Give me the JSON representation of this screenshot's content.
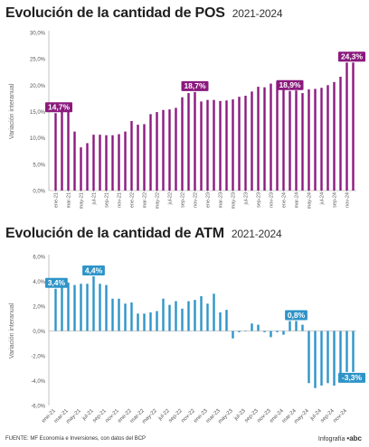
{
  "chart_data": [
    {
      "type": "bar",
      "title": "Evolución de la cantidad de POS",
      "subtitle": "2021-2024",
      "ylabel": "Variación interanual",
      "ylim": [
        0,
        30
      ],
      "yticks": [
        "0,0%",
        "5,0%",
        "10,0%",
        "15,0%",
        "20,0%",
        "25,0%",
        "30,0%"
      ],
      "xticks": [
        "ene-21",
        "mar-21",
        "may-21",
        "jul-21",
        "sep-21",
        "nov-21",
        "ene-22",
        "mar-22",
        "may-22",
        "jul-22",
        "sep-22",
        "nov-22",
        "ene-23",
        "mar-23",
        "may-23",
        "jul-23",
        "sep-23",
        "nov-23",
        "ene-24",
        "mar-24",
        "may-24",
        "jul-24",
        "sep-24",
        "nov-24"
      ],
      "categories": [
        "ene-21",
        "feb-21",
        "mar-21",
        "abr-21",
        "may-21",
        "jun-21",
        "jul-21",
        "ago-21",
        "sep-21",
        "oct-21",
        "nov-21",
        "dic-21",
        "ene-22",
        "feb-22",
        "mar-22",
        "abr-22",
        "may-22",
        "jun-22",
        "jul-22",
        "ago-22",
        "sep-22",
        "oct-22",
        "nov-22",
        "dic-22",
        "ene-23",
        "feb-23",
        "mar-23",
        "abr-23",
        "may-23",
        "jun-23",
        "jul-23",
        "ago-23",
        "sep-23",
        "oct-23",
        "nov-23",
        "dic-23",
        "ene-24",
        "feb-24",
        "mar-24",
        "abr-24",
        "may-24",
        "jun-24",
        "jul-24",
        "ago-24",
        "sep-24",
        "oct-24",
        "nov-24",
        "dic-24"
      ],
      "values": [
        14.7,
        15.5,
        15.0,
        11.2,
        8.2,
        9.0,
        10.6,
        10.6,
        10.5,
        10.5,
        10.7,
        11.2,
        13.2,
        12.5,
        12.6,
        14.5,
        14.9,
        15.3,
        15.4,
        15.7,
        17.7,
        18.5,
        18.7,
        16.9,
        17.2,
        17.2,
        17.0,
        17.1,
        17.3,
        17.8,
        18.0,
        18.8,
        19.7,
        19.6,
        20.3,
        20.6,
        20.9,
        18.9,
        19.0,
        18.5,
        19.2,
        19.3,
        19.5,
        20.0,
        20.6,
        21.6,
        24.3,
        24.3
      ],
      "data_labels": [
        {
          "index": 0,
          "text": "14,7%"
        },
        {
          "index": 22,
          "text": "18,7%"
        },
        {
          "index": 37,
          "text": "18,9%"
        },
        {
          "index": 47,
          "text": "24,3%"
        }
      ],
      "color": "#8b1a7e",
      "label_bg": "#8b1a7e",
      "grid": false
    },
    {
      "type": "bar",
      "title": "Evolución de la cantidad de ATM",
      "subtitle": "2021-2024",
      "ylabel": "Variación interanual",
      "ylim": [
        -6,
        6
      ],
      "yticks": [
        "-6,0%",
        "-4,0%",
        "-2,0%",
        "0,0%",
        "2,0%",
        "4,0%",
        "6,0%"
      ],
      "xticks": [
        "ene-21",
        "mar-21",
        "may-21",
        "jul-21",
        "sep-21",
        "nov-21",
        "ene-22",
        "mar-22",
        "may-22",
        "jul-22",
        "sep-22",
        "nov-22",
        "ene-23",
        "mar-23",
        "may-23",
        "jul-23",
        "sep-23",
        "nov-23",
        "ene-24",
        "mar-24",
        "may-24",
        "jul-24",
        "sep-24",
        "nov-24"
      ],
      "categories": [
        "ene-21",
        "feb-21",
        "mar-21",
        "abr-21",
        "may-21",
        "jun-21",
        "jul-21",
        "ago-21",
        "sep-21",
        "oct-21",
        "nov-21",
        "dic-21",
        "ene-22",
        "feb-22",
        "mar-22",
        "abr-22",
        "may-22",
        "jun-22",
        "jul-22",
        "ago-22",
        "sep-22",
        "oct-22",
        "nov-22",
        "dic-22",
        "ene-23",
        "feb-23",
        "mar-23",
        "abr-23",
        "may-23",
        "jun-23",
        "jul-23",
        "ago-23",
        "sep-23",
        "oct-23",
        "nov-23",
        "dic-23",
        "ene-24",
        "feb-24",
        "mar-24",
        "abr-24",
        "may-24",
        "jun-24",
        "jul-24",
        "ago-24",
        "sep-24",
        "oct-24",
        "nov-24",
        "dic-24"
      ],
      "values": [
        3.4,
        3.6,
        3.9,
        3.7,
        3.8,
        3.8,
        4.4,
        3.8,
        3.7,
        2.6,
        2.6,
        2.2,
        2.3,
        1.4,
        1.4,
        1.5,
        1.6,
        2.6,
        2.1,
        2.4,
        1.8,
        2.4,
        2.5,
        2.8,
        2.2,
        3.0,
        1.5,
        1.7,
        -0.6,
        -0.1,
        0.0,
        0.6,
        0.5,
        -0.1,
        -0.5,
        -0.1,
        -0.3,
        0.8,
        0.8,
        0.5,
        -4.2,
        -4.6,
        -4.4,
        -4.2,
        -4.4,
        -3.9,
        -3.3,
        -3.3
      ],
      "data_labels": [
        {
          "index": 0,
          "text": "3,4%"
        },
        {
          "index": 6,
          "text": "4,4%"
        },
        {
          "index": 38,
          "text": "0,8%"
        },
        {
          "index": 47,
          "text": "-3,3%"
        }
      ],
      "color": "#2e94c8",
      "label_bg": "#2e94c8",
      "grid": false
    }
  ],
  "footer": {
    "source": "FUENTE: MF Economía e Inversiones, con datos del BCP",
    "credit_label": "Infografía",
    "credit_brand": "•abc"
  }
}
